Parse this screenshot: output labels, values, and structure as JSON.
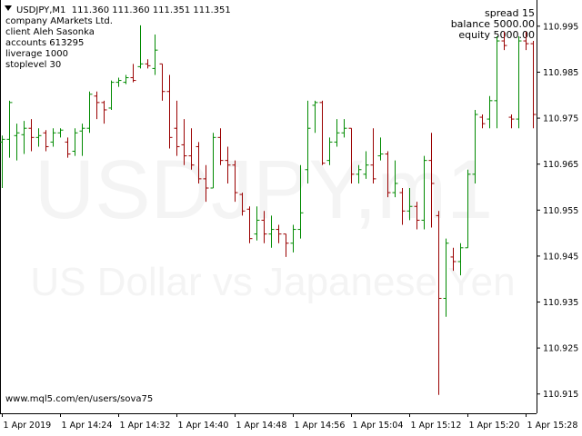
{
  "chart_data": {
    "type": "ohlc",
    "title": "USDJPY,M1  111.360 111.360 111.351 111.351",
    "info": [
      "company AMarkets Ltd.",
      "client Aleh Sasonka",
      "accounts 613295",
      "liverage 1000",
      "stoplevel 30"
    ],
    "account_info": [
      "spread 15",
      "balance 5000.00",
      "equity 5000.00"
    ],
    "watermark": [
      "USDJPY,m1",
      "US Dollar vs Japanese Yen"
    ],
    "footer": "www.mql5.com/en/users/sova75",
    "categories": [
      "1 Apr 2019",
      null,
      null,
      null,
      null,
      null,
      null,
      null,
      "1 Apr 14:24",
      null,
      null,
      null,
      null,
      null,
      null,
      null,
      "1 Apr 14:32",
      null,
      null,
      null,
      null,
      null,
      null,
      null,
      "1 Apr 14:40",
      null,
      null,
      null,
      null,
      null,
      null,
      null,
      "1 Apr 14:48",
      null,
      null,
      null,
      null,
      null,
      null,
      null,
      "1 Apr 14:56",
      null,
      null,
      null,
      null,
      null,
      null,
      null,
      "1 Apr 15:04",
      null,
      null,
      null,
      null,
      null,
      null,
      null,
      "1 Apr 15:12",
      null,
      null,
      null,
      null,
      null,
      null,
      null,
      "1 Apr 15:20",
      null,
      null,
      null,
      null,
      null,
      null,
      null,
      "1 Apr 15:28",
      null
    ],
    "open": [
      110.9698,
      110.9704,
      110.9712,
      110.9714,
      110.9728,
      110.9708,
      110.9718,
      110.9698,
      110.9718,
      110.9698,
      110.9678,
      110.9722,
      110.9728,
      110.9798,
      110.9784,
      110.9772,
      110.9828,
      110.9828,
      110.9838,
      110.9862,
      110.9868,
      110.9858,
      110.9868,
      110.9808,
      110.9728,
      110.9692,
      110.9668,
      110.9688,
      110.9618,
      110.9598,
      110.9708,
      110.9658,
      110.9648,
      110.9584,
      110.9552,
      110.9498,
      110.9528,
      110.9498,
      110.9508,
      110.9498,
      110.9478,
      110.9508,
      110.9638,
      110.9778,
      110.9784,
      110.9658,
      110.9698,
      110.9718,
      110.9728,
      110.9628,
      110.9628,
      110.9648,
      110.9668,
      110.9672,
      110.9588,
      110.9588,
      110.9548,
      110.9558,
      110.9528,
      110.9658,
      110.9538,
      110.9358,
      110.9448,
      110.9438,
      110.9468,
      110.9628,
      110.9752,
      110.9748,
      110.9788,
      110.9918,
      110.9752,
      110.9748,
      110.9918,
      110.9912
    ],
    "high": [
      110.9712,
      110.9788,
      110.9738,
      110.9744,
      110.9748,
      110.9728,
      110.9724,
      110.9728,
      110.9728,
      110.9708,
      110.9728,
      110.9738,
      110.9808,
      110.9808,
      110.9788,
      110.9832,
      110.9838,
      110.9844,
      110.9868,
      110.9952,
      110.9878,
      110.9932,
      110.9868,
      110.9844,
      110.9788,
      110.9748,
      110.9728,
      110.9698,
      110.9648,
      110.9718,
      110.9728,
      110.9688,
      110.9658,
      110.9588,
      110.9558,
      110.9558,
      110.9548,
      110.9538,
      110.9518,
      110.9498,
      110.9518,
      110.9648,
      110.9788,
      110.9788,
      110.9788,
      110.9708,
      110.9748,
      110.9748,
      110.9728,
      110.9648,
      110.9678,
      110.9728,
      110.9708,
      110.9678,
      110.9658,
      110.9598,
      110.9598,
      110.9568,
      110.9668,
      110.9718,
      110.9548,
      110.9488,
      110.9468,
      110.9478,
      110.9638,
      110.9768,
      110.9758,
      110.9798,
      110.9928,
      110.9938,
      110.9758,
      110.9928,
      110.9938,
      110.9918
    ],
    "low": [
      110.9598,
      110.9664,
      110.9658,
      110.9672,
      110.9678,
      110.9688,
      110.9678,
      110.9688,
      110.9708,
      110.9664,
      110.9668,
      110.9668,
      110.9718,
      110.9748,
      110.9738,
      110.9768,
      110.9818,
      110.9824,
      110.9828,
      110.9858,
      110.9858,
      110.9844,
      110.9788,
      110.9684,
      110.9668,
      110.9648,
      110.9638,
      110.9608,
      110.9568,
      110.9598,
      110.9648,
      110.9608,
      110.9568,
      110.9538,
      110.9478,
      110.9484,
      110.9478,
      110.9468,
      110.9478,
      110.9448,
      110.9458,
      110.9488,
      110.9608,
      110.9718,
      110.9648,
      110.9648,
      110.9688,
      110.9708,
      110.9608,
      110.9608,
      110.9618,
      110.9608,
      110.9658,
      110.9578,
      110.9578,
      110.9518,
      110.9528,
      110.9508,
      110.9508,
      110.9512,
      110.9148,
      110.9318,
      110.9418,
      110.9408,
      110.9468,
      110.9608,
      110.9728,
      110.9728,
      110.9728,
      110.9898,
      110.9728,
      110.9728,
      110.9898,
      110.9728
    ],
    "close": [
      110.9704,
      110.9784,
      110.9718,
      110.9728,
      110.9708,
      110.9712,
      110.9688,
      110.9718,
      110.9724,
      110.9672,
      110.9718,
      110.9728,
      110.9802,
      110.9784,
      110.9768,
      110.9828,
      110.9832,
      110.9838,
      110.9832,
      110.9868,
      110.9864,
      110.9898,
      110.9808,
      110.9708,
      110.9688,
      110.9668,
      110.9648,
      110.9618,
      110.9598,
      110.9708,
      110.9658,
      110.9648,
      110.9588,
      110.9548,
      110.9488,
      110.9528,
      110.9498,
      110.9508,
      110.9498,
      110.9478,
      110.9508,
      110.9544,
      110.9728,
      110.9784,
      110.9652,
      110.9698,
      110.9718,
      110.9728,
      110.9628,
      110.9638,
      110.9648,
      110.9618,
      110.9672,
      110.9588,
      110.9608,
      110.9548,
      110.9558,
      110.9528,
      110.9658,
      110.9608,
      110.9358,
      110.9478,
      110.9438,
      110.9468,
      110.9628,
      110.9758,
      110.9738,
      110.9788,
      110.9918,
      110.9908,
      110.9748,
      110.9918,
      110.9912,
      110.9758
    ],
    "up_color": "#008a00",
    "down_color": "#9a0000",
    "ylim": [
      110.9108,
      111.0007
    ],
    "yticks": [
      110.915,
      110.925,
      110.935,
      110.945,
      110.955,
      110.965,
      110.975,
      110.985,
      110.995
    ]
  }
}
